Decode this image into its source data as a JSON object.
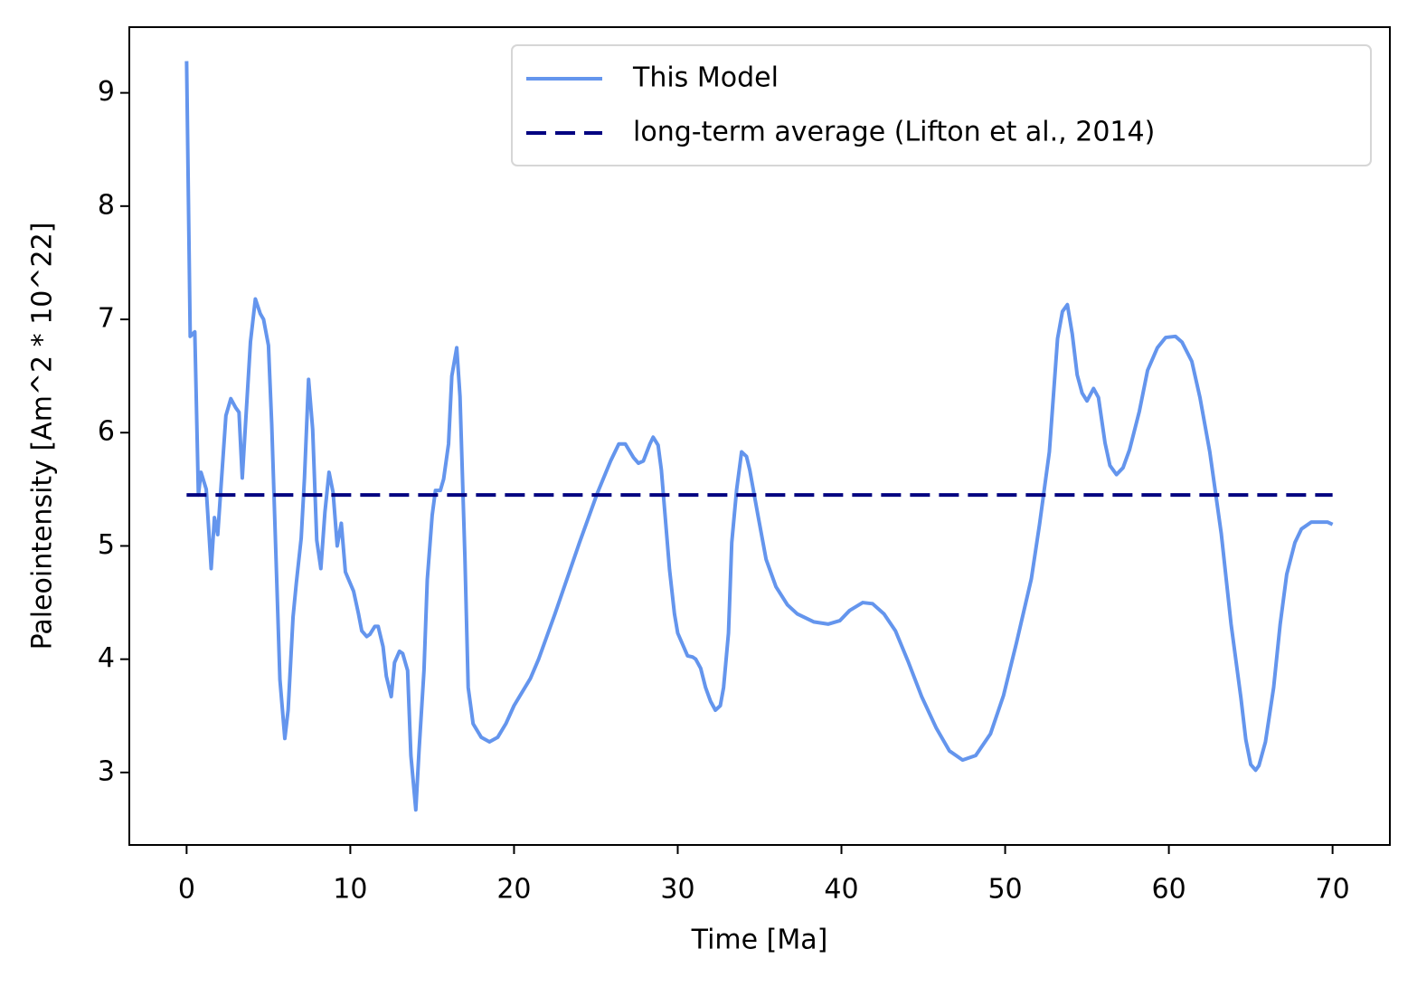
{
  "chart_data": {
    "type": "line",
    "xlabel": "Time [Ma]",
    "ylabel": "Paleointensity [Am^2 * 10^22]",
    "xlim": [
      -3.5,
      73.5
    ],
    "ylim": [
      2.36,
      9.58
    ],
    "xticks": [
      0,
      10,
      20,
      30,
      40,
      50,
      60,
      70
    ],
    "yticks": [
      3,
      4,
      5,
      6,
      7,
      8,
      9
    ],
    "legend": "upper right",
    "series": [
      {
        "name": "This Model",
        "color": "#6495ed",
        "linestyle": "solid",
        "x": [
          0,
          0.22,
          0.5,
          0.72,
          0.88,
          1.2,
          1.5,
          1.7,
          1.9,
          2.4,
          2.7,
          3.0,
          3.2,
          3.4,
          3.9,
          4.2,
          4.5,
          4.7,
          5.0,
          5.2,
          5.7,
          6.0,
          6.2,
          6.5,
          6.7,
          7.0,
          7.2,
          7.45,
          7.7,
          7.95,
          8.2,
          8.45,
          8.7,
          8.95,
          9.2,
          9.45,
          9.7,
          10.2,
          10.5,
          10.7,
          11.0,
          11.2,
          11.5,
          11.7,
          12.0,
          12.2,
          12.5,
          12.7,
          13.0,
          13.2,
          13.5,
          13.7,
          14.0,
          14.2,
          14.5,
          14.7,
          15.0,
          15.2,
          15.5,
          15.7,
          16.0,
          16.2,
          16.5,
          16.7,
          17.0,
          17.2,
          17.5,
          18.0,
          18.5,
          19.0,
          19.5,
          20.0,
          20.5,
          21.0,
          21.5,
          22.0,
          22.5,
          24.0,
          25.1,
          25.9,
          26.4,
          26.8,
          27.3,
          27.6,
          27.9,
          28.3,
          28.5,
          28.8,
          29.0,
          29.5,
          29.8,
          30.0,
          30.3,
          30.6,
          30.9,
          31.1,
          31.4,
          31.7,
          32.0,
          32.3,
          32.6,
          32.8,
          33.1,
          33.3,
          33.6,
          33.9,
          34.2,
          34.4,
          34.9,
          35.4,
          36.0,
          36.7,
          37.3,
          38.3,
          39.2,
          39.9,
          40.5,
          41.3,
          41.9,
          42.6,
          43.3,
          44.1,
          44.9,
          45.8,
          46.6,
          47.4,
          48.2,
          49.1,
          49.9,
          50.7,
          51.6,
          52.1,
          52.7,
          53.2,
          53.5,
          53.8,
          54.1,
          54.4,
          54.7,
          55.0,
          55.4,
          55.7,
          56.1,
          56.4,
          56.8,
          57.2,
          57.6,
          58.2,
          58.7,
          59.3,
          59.8,
          60.4,
          60.8,
          61.4,
          61.9,
          62.5,
          63.2,
          63.8,
          64.4,
          64.7,
          65.0,
          65.3,
          65.5,
          65.9,
          66.4,
          66.8,
          67.2,
          67.7,
          68.1,
          68.7,
          69.2,
          69.7,
          70.0
        ],
        "values": [
          9.28,
          6.85,
          6.89,
          5.45,
          5.65,
          5.5,
          4.8,
          5.25,
          5.1,
          6.15,
          6.3,
          6.22,
          6.18,
          5.6,
          6.8,
          7.18,
          7.05,
          7.0,
          6.77,
          6.07,
          3.82,
          3.3,
          3.55,
          4.37,
          4.67,
          5.07,
          5.6,
          6.47,
          6.03,
          5.05,
          4.8,
          5.3,
          5.65,
          5.47,
          5.0,
          5.2,
          4.77,
          4.6,
          4.4,
          4.25,
          4.2,
          4.22,
          4.29,
          4.29,
          4.11,
          3.85,
          3.67,
          3.97,
          4.07,
          4.05,
          3.9,
          3.15,
          2.67,
          3.2,
          3.9,
          4.7,
          5.27,
          5.49,
          5.49,
          5.59,
          5.9,
          6.5,
          6.75,
          6.32,
          4.9,
          3.75,
          3.43,
          3.31,
          3.27,
          3.31,
          3.43,
          3.59,
          3.71,
          3.83,
          4.0,
          4.2,
          4.4,
          5.03,
          5.47,
          5.75,
          5.9,
          5.9,
          5.78,
          5.73,
          5.75,
          5.9,
          5.96,
          5.89,
          5.67,
          4.79,
          4.4,
          4.23,
          4.13,
          4.03,
          4.02,
          4.0,
          3.92,
          3.75,
          3.63,
          3.55,
          3.59,
          3.75,
          4.23,
          5.03,
          5.5,
          5.83,
          5.79,
          5.67,
          5.27,
          4.88,
          4.64,
          4.48,
          4.4,
          4.33,
          4.31,
          4.34,
          4.43,
          4.5,
          4.49,
          4.4,
          4.25,
          3.97,
          3.67,
          3.39,
          3.19,
          3.11,
          3.15,
          3.34,
          3.68,
          4.15,
          4.71,
          5.19,
          5.83,
          6.83,
          7.07,
          7.13,
          6.87,
          6.51,
          6.35,
          6.28,
          6.39,
          6.31,
          5.91,
          5.71,
          5.63,
          5.69,
          5.85,
          6.19,
          6.55,
          6.75,
          6.84,
          6.85,
          6.8,
          6.63,
          6.31,
          5.83,
          5.11,
          4.31,
          3.66,
          3.29,
          3.07,
          3.02,
          3.06,
          3.27,
          3.75,
          4.31,
          4.75,
          5.03,
          5.15,
          5.21,
          5.21,
          5.21,
          5.19
        ]
      },
      {
        "name": "long-term average (Lifton et al., 2014)",
        "color": "#000080",
        "linestyle": "dashed",
        "x": [
          0,
          70
        ],
        "values": [
          5.45,
          5.45
        ]
      }
    ]
  }
}
